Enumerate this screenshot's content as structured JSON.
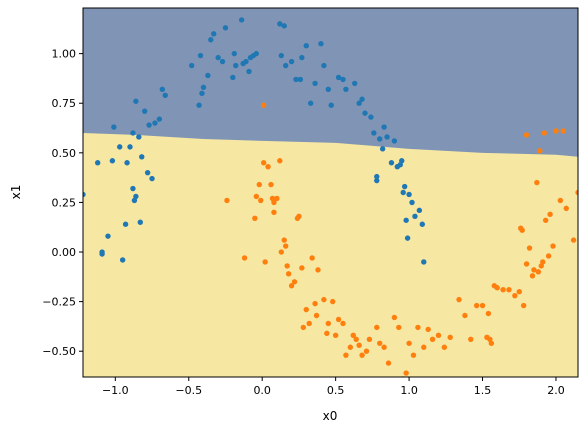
{
  "chart_data": {
    "type": "scatter",
    "title": "",
    "xlabel": "x0",
    "ylabel": "x1",
    "xlim": [
      -1.22,
      2.15
    ],
    "ylim": [
      -0.63,
      1.23
    ],
    "grid": false,
    "legend": "none",
    "x_ticks": [
      -1.0,
      -0.5,
      0.0,
      0.5,
      1.0,
      1.5,
      2.0
    ],
    "x_tick_labels": [
      "−1.0",
      "−0.5",
      "0.0",
      "0.5",
      "1.0",
      "1.5",
      "2.0"
    ],
    "y_ticks": [
      -0.5,
      -0.25,
      0.0,
      0.25,
      0.5,
      0.75,
      1.0
    ],
    "y_tick_labels": [
      "−0.50",
      "−0.25",
      "0.00",
      "0.25",
      "0.50",
      "0.75",
      "1.00"
    ],
    "decision_regions": {
      "upper_class_color": "#8095b5",
      "lower_class_color": "#f6e7a2",
      "boundary": [
        [
          -1.22,
          0.6
        ],
        [
          -0.85,
          0.59
        ],
        [
          -0.4,
          0.57
        ],
        [
          0.0,
          0.56
        ],
        [
          0.5,
          0.55
        ],
        [
          1.0,
          0.52
        ],
        [
          1.5,
          0.5
        ],
        [
          2.0,
          0.49
        ],
        [
          2.15,
          0.48
        ]
      ]
    },
    "series": [
      {
        "color": "#1f77b4",
        "points": [
          [
            -1.22,
            0.29
          ],
          [
            -1.12,
            0.45
          ],
          [
            -1.09,
            0.0
          ],
          [
            -1.09,
            -0.01
          ],
          [
            -1.05,
            0.08
          ],
          [
            -1.02,
            0.46
          ],
          [
            -1.01,
            0.63
          ],
          [
            -0.97,
            0.53
          ],
          [
            -0.95,
            -0.04
          ],
          [
            -0.93,
            0.14
          ],
          [
            -0.92,
            0.45
          ],
          [
            -0.9,
            0.53
          ],
          [
            -0.88,
            0.6
          ],
          [
            -0.88,
            0.32
          ],
          [
            -0.87,
            0.26
          ],
          [
            -0.86,
            0.28
          ],
          [
            -0.86,
            0.76
          ],
          [
            -0.84,
            0.58
          ],
          [
            -0.83,
            0.15
          ],
          [
            -0.82,
            0.48
          ],
          [
            -0.8,
            0.71
          ],
          [
            -0.78,
            0.4
          ],
          [
            -0.77,
            0.64
          ],
          [
            -0.75,
            0.37
          ],
          [
            -0.73,
            0.65
          ],
          [
            -0.7,
            0.67
          ],
          [
            -0.68,
            0.82
          ],
          [
            -0.66,
            0.79
          ],
          [
            -0.48,
            0.94
          ],
          [
            -0.43,
            0.74
          ],
          [
            -0.42,
            0.99
          ],
          [
            -0.41,
            0.8
          ],
          [
            -0.4,
            0.83
          ],
          [
            -0.37,
            0.89
          ],
          [
            -0.35,
            1.07
          ],
          [
            -0.33,
            1.1
          ],
          [
            -0.3,
            0.98
          ],
          [
            -0.27,
            0.96
          ],
          [
            -0.25,
            1.13
          ],
          [
            -0.2,
            0.88
          ],
          [
            -0.19,
            1.0
          ],
          [
            -0.18,
            0.94
          ],
          [
            -0.14,
            1.17
          ],
          [
            -0.13,
            0.95
          ],
          [
            -0.11,
            0.96
          ],
          [
            -0.09,
            0.91
          ],
          [
            -0.08,
            0.98
          ],
          [
            -0.06,
            0.99
          ],
          [
            -0.04,
            1.0
          ],
          [
            0.12,
            1.15
          ],
          [
            0.13,
            0.99
          ],
          [
            0.15,
            1.14
          ],
          [
            0.16,
            0.94
          ],
          [
            0.2,
            0.96
          ],
          [
            0.23,
            0.87
          ],
          [
            0.26,
            0.87
          ],
          [
            0.27,
            0.98
          ],
          [
            0.3,
            1.04
          ],
          [
            0.33,
            0.75
          ],
          [
            0.36,
            0.85
          ],
          [
            0.4,
            1.05
          ],
          [
            0.42,
            0.94
          ],
          [
            0.45,
            0.82
          ],
          [
            0.47,
            0.74
          ],
          [
            0.52,
            0.88
          ],
          [
            0.55,
            0.87
          ],
          [
            0.57,
            0.82
          ],
          [
            0.63,
            0.85
          ],
          [
            0.66,
            0.75
          ],
          [
            0.68,
            0.77
          ],
          [
            0.7,
            0.7
          ],
          [
            0.74,
            0.68
          ],
          [
            0.76,
            0.6
          ],
          [
            0.78,
            0.38
          ],
          [
            0.78,
            0.36
          ],
          [
            0.8,
            0.57
          ],
          [
            0.82,
            0.52
          ],
          [
            0.83,
            0.63
          ],
          [
            0.85,
            0.58
          ],
          [
            0.88,
            0.45
          ],
          [
            0.9,
            0.56
          ],
          [
            0.92,
            0.43
          ],
          [
            0.94,
            0.44
          ],
          [
            0.95,
            0.46
          ],
          [
            0.96,
            0.3
          ],
          [
            0.97,
            0.33
          ],
          [
            0.98,
            0.16
          ],
          [
            0.99,
            0.07
          ],
          [
            1.0,
            0.29
          ],
          [
            1.02,
            0.25
          ],
          [
            1.04,
            0.18
          ],
          [
            1.07,
            0.21
          ],
          [
            1.09,
            0.14
          ],
          [
            1.1,
            -0.05
          ]
        ]
      },
      {
        "color": "#ff7f0e",
        "points": [
          [
            0.01,
            0.74
          ],
          [
            -0.24,
            0.26
          ],
          [
            -0.12,
            -0.03
          ],
          [
            -0.05,
            0.17
          ],
          [
            -0.04,
            0.28
          ],
          [
            -0.02,
            0.34
          ],
          [
            -0.01,
            0.26
          ],
          [
            0.01,
            0.45
          ],
          [
            0.02,
            -0.05
          ],
          [
            0.04,
            0.43
          ],
          [
            0.06,
            0.34
          ],
          [
            0.07,
            0.27
          ],
          [
            0.08,
            0.25
          ],
          [
            0.08,
            0.2
          ],
          [
            0.1,
            0.27
          ],
          [
            0.12,
            0.46
          ],
          [
            0.13,
            0.0
          ],
          [
            0.15,
            0.06
          ],
          [
            0.16,
            0.03
          ],
          [
            0.17,
            -0.07
          ],
          [
            0.18,
            -0.11
          ],
          [
            0.2,
            -0.17
          ],
          [
            0.22,
            -0.15
          ],
          [
            0.24,
            0.17
          ],
          [
            0.25,
            0.18
          ],
          [
            0.27,
            -0.08
          ],
          [
            0.28,
            -0.38
          ],
          [
            0.3,
            -0.29
          ],
          [
            0.32,
            -0.36
          ],
          [
            0.34,
            -0.03
          ],
          [
            0.36,
            -0.26
          ],
          [
            0.37,
            -0.32
          ],
          [
            0.38,
            -0.09
          ],
          [
            0.42,
            -0.24
          ],
          [
            0.44,
            -0.41
          ],
          [
            0.45,
            -0.36
          ],
          [
            0.48,
            -0.25
          ],
          [
            0.5,
            -0.42
          ],
          [
            0.52,
            -0.34
          ],
          [
            0.55,
            -0.36
          ],
          [
            0.57,
            -0.52
          ],
          [
            0.6,
            -0.48
          ],
          [
            0.62,
            -0.42
          ],
          [
            0.64,
            -0.44
          ],
          [
            0.66,
            -0.47
          ],
          [
            0.68,
            -0.52
          ],
          [
            0.71,
            -0.5
          ],
          [
            0.73,
            -0.44
          ],
          [
            0.78,
            -0.38
          ],
          [
            0.8,
            -0.46
          ],
          [
            0.83,
            -0.48
          ],
          [
            0.86,
            -0.56
          ],
          [
            0.9,
            -0.33
          ],
          [
            0.93,
            -0.38
          ],
          [
            0.96,
            -0.64
          ],
          [
            0.98,
            -0.61
          ],
          [
            1.0,
            -0.46
          ],
          [
            1.03,
            -0.52
          ],
          [
            1.06,
            -0.38
          ],
          [
            1.1,
            -0.48
          ],
          [
            1.13,
            -0.39
          ],
          [
            1.16,
            -0.44
          ],
          [
            1.2,
            -0.42
          ],
          [
            1.24,
            -0.48
          ],
          [
            1.28,
            -0.43
          ],
          [
            1.34,
            -0.24
          ],
          [
            1.38,
            -0.32
          ],
          [
            1.42,
            -0.44
          ],
          [
            1.46,
            -0.27
          ],
          [
            1.5,
            -0.27
          ],
          [
            1.53,
            -0.43
          ],
          [
            1.54,
            -0.31
          ],
          [
            1.55,
            -0.44
          ],
          [
            1.56,
            -0.46
          ],
          [
            1.58,
            -0.17
          ],
          [
            1.6,
            -0.18
          ],
          [
            1.64,
            -0.19
          ],
          [
            1.68,
            -0.19
          ],
          [
            1.72,
            -0.22
          ],
          [
            1.75,
            -0.2
          ],
          [
            1.76,
            0.12
          ],
          [
            1.77,
            0.11
          ],
          [
            1.78,
            -0.27
          ],
          [
            1.8,
            0.59
          ],
          [
            1.8,
            -0.06
          ],
          [
            1.82,
            0.02
          ],
          [
            1.84,
            -0.12
          ],
          [
            1.85,
            -0.09
          ],
          [
            1.87,
            0.35
          ],
          [
            1.88,
            -0.1
          ],
          [
            1.89,
            0.51
          ],
          [
            1.9,
            -0.07
          ],
          [
            1.91,
            -0.05
          ],
          [
            1.92,
            0.6
          ],
          [
            1.93,
            0.16
          ],
          [
            1.95,
            -0.02
          ],
          [
            1.96,
            0.19
          ],
          [
            1.98,
            0.03
          ],
          [
            2.0,
            0.61
          ],
          [
            2.03,
            0.26
          ],
          [
            2.05,
            0.61
          ],
          [
            2.07,
            0.22
          ],
          [
            2.12,
            0.06
          ],
          [
            2.15,
            0.3
          ]
        ]
      }
    ]
  }
}
